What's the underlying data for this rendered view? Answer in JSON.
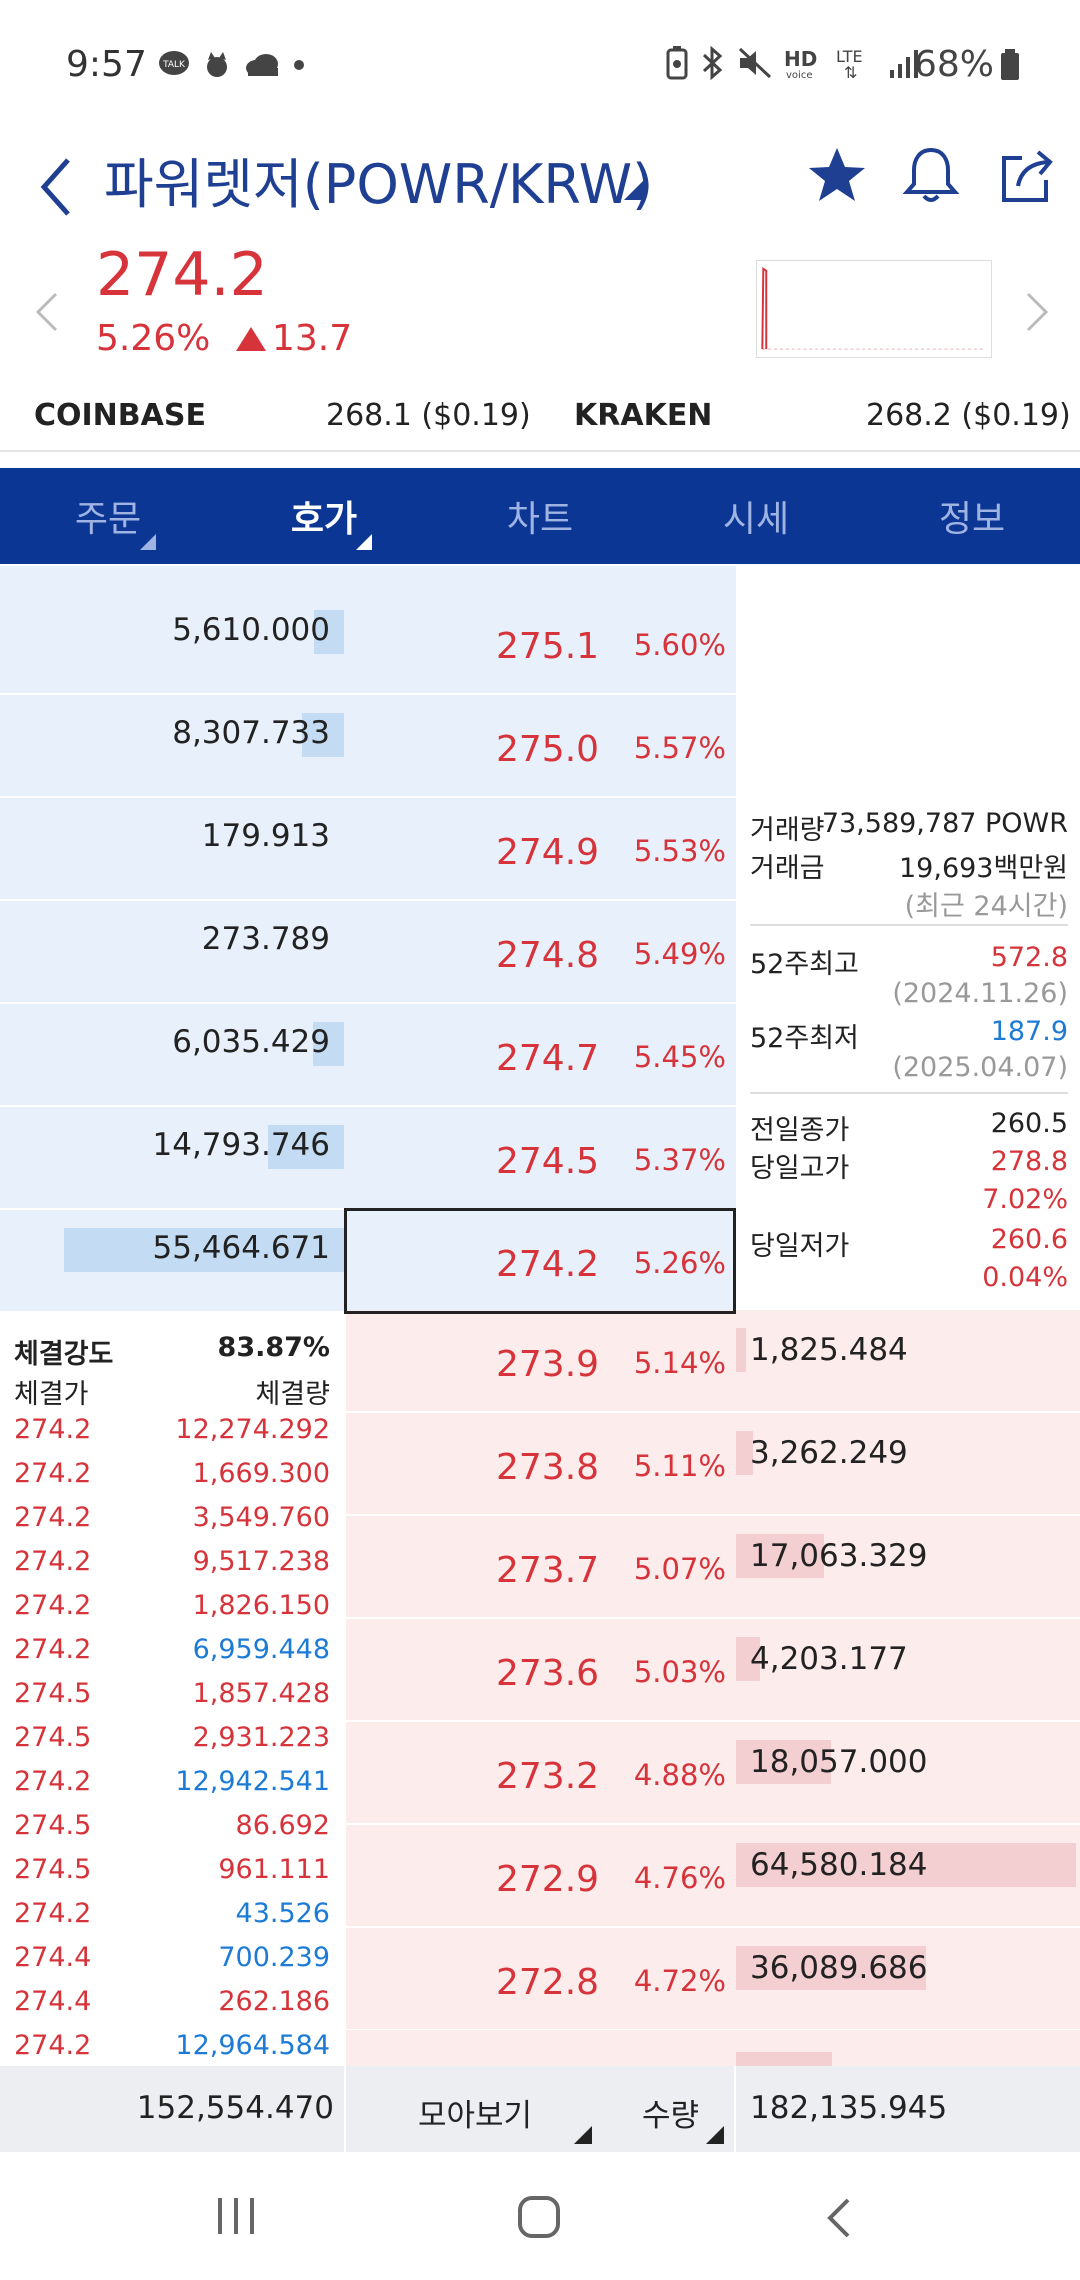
{
  "status": {
    "time": "9:57",
    "battery": "68%",
    "icons_left": [
      "talk-icon",
      "cat-icon",
      "cloud-icon",
      "dot-icon"
    ],
    "icons_right": [
      "battery-saver-icon",
      "bluetooth-icon",
      "mute-icon",
      "hd-voice-icon",
      "lte-icon",
      "signal-icon"
    ]
  },
  "header": {
    "title": "파워렛저(POWR/KRW)"
  },
  "ticker": {
    "price": "274.2",
    "pct": "5.26%",
    "change": "13.7"
  },
  "exchanges": [
    {
      "name": "COINBASE",
      "value": "268.1 ($0.19)"
    },
    {
      "name": "KRAKEN",
      "value": "268.2 ($0.19)"
    }
  ],
  "tabs": [
    {
      "label": "주문",
      "dropdown": true
    },
    {
      "label": "호가",
      "dropdown": true,
      "active": true
    },
    {
      "label": "차트"
    },
    {
      "label": "시세"
    },
    {
      "label": "정보"
    }
  ],
  "asks": [
    {
      "volume": "5,610.000",
      "price": "275.1",
      "pct": "5.60%",
      "fill": 0.1
    },
    {
      "volume": "8,307.733",
      "price": "275.0",
      "pct": "5.57%",
      "fill": 0.15
    },
    {
      "volume": "179.913",
      "price": "274.9",
      "pct": "5.53%",
      "fill": 0
    },
    {
      "volume": "273.789",
      "price": "274.8",
      "pct": "5.49%",
      "fill": 0
    },
    {
      "volume": "6,035.429",
      "price": "274.7",
      "pct": "5.45%",
      "fill": 0.11
    },
    {
      "volume": "14,793.746",
      "price": "274.5",
      "pct": "5.37%",
      "fill": 0.27
    },
    {
      "volume": "55,464.671",
      "price": "274.2",
      "pct": "5.26%",
      "fill": 1.0
    }
  ],
  "bids": [
    {
      "volume": "1,825.484",
      "price": "273.9",
      "pct": "5.14%",
      "fill": 0.03
    },
    {
      "volume": "3,262.249",
      "price": "273.8",
      "pct": "5.11%",
      "fill": 0.05
    },
    {
      "volume": "17,063.329",
      "price": "273.7",
      "pct": "5.07%",
      "fill": 0.26
    },
    {
      "volume": "4,203.177",
      "price": "273.6",
      "pct": "5.03%",
      "fill": 0.07
    },
    {
      "volume": "18,057.000",
      "price": "273.2",
      "pct": "4.88%",
      "fill": 0.28
    },
    {
      "volume": "64,580.184",
      "price": "272.9",
      "pct": "4.76%",
      "fill": 1.0
    },
    {
      "volume": "36,089.686",
      "price": "272.8",
      "pct": "4.72%",
      "fill": 0.56
    }
  ],
  "info": {
    "vol_label": "거래량",
    "vol_value": "73,589,787 POWR",
    "amt_label": "거래금",
    "amt_value": "19,693백만원",
    "period": "(최근 24시간)",
    "high52_label": "52주최고",
    "high52": "572.8",
    "high52_date": "(2024.11.26)",
    "low52_label": "52주최저",
    "low52": "187.9",
    "low52_date": "(2025.04.07)",
    "prevclose_label": "전일종가",
    "prevclose": "260.5",
    "dayhigh_label": "당일고가",
    "dayhigh": "278.8",
    "dayhigh_pct": "7.02%",
    "daylow_label": "당일저가",
    "daylow": "260.6",
    "daylow_pct": "0.04%"
  },
  "trades": {
    "strength_label": "체결강도",
    "strength": "83.87%",
    "price_label": "체결가",
    "volume_label": "체결량",
    "rows": [
      {
        "price": "274.2",
        "volume": "12,274.292",
        "color": "#d6333a"
      },
      {
        "price": "274.2",
        "volume": "1,669.300",
        "color": "#d6333a"
      },
      {
        "price": "274.2",
        "volume": "3,549.760",
        "color": "#d6333a"
      },
      {
        "price": "274.2",
        "volume": "9,517.238",
        "color": "#d6333a"
      },
      {
        "price": "274.2",
        "volume": "1,826.150",
        "color": "#d6333a"
      },
      {
        "price": "274.2",
        "volume": "6,959.448",
        "color": "#1d7bd6"
      },
      {
        "price": "274.5",
        "volume": "1,857.428",
        "color": "#d6333a"
      },
      {
        "price": "274.5",
        "volume": "2,931.223",
        "color": "#d6333a"
      },
      {
        "price": "274.2",
        "volume": "12,942.541",
        "color": "#1d7bd6"
      },
      {
        "price": "274.5",
        "volume": "86.692",
        "color": "#d6333a"
      },
      {
        "price": "274.5",
        "volume": "961.111",
        "color": "#d6333a"
      },
      {
        "price": "274.2",
        "volume": "43.526",
        "color": "#1d7bd6"
      },
      {
        "price": "274.4",
        "volume": "700.239",
        "color": "#1d7bd6"
      },
      {
        "price": "274.4",
        "volume": "262.186",
        "color": "#d6333a"
      },
      {
        "price": "274.2",
        "volume": "12,964.584",
        "color": "#1d7bd6"
      }
    ]
  },
  "footer": {
    "ask_total": "152,554.470",
    "group_label": "모아보기",
    "qty_label": "수량",
    "bid_total": "182,135.945"
  },
  "colors": {
    "up": "#d6333a",
    "down": "#1d7bd6",
    "brand": "#0c3694"
  }
}
